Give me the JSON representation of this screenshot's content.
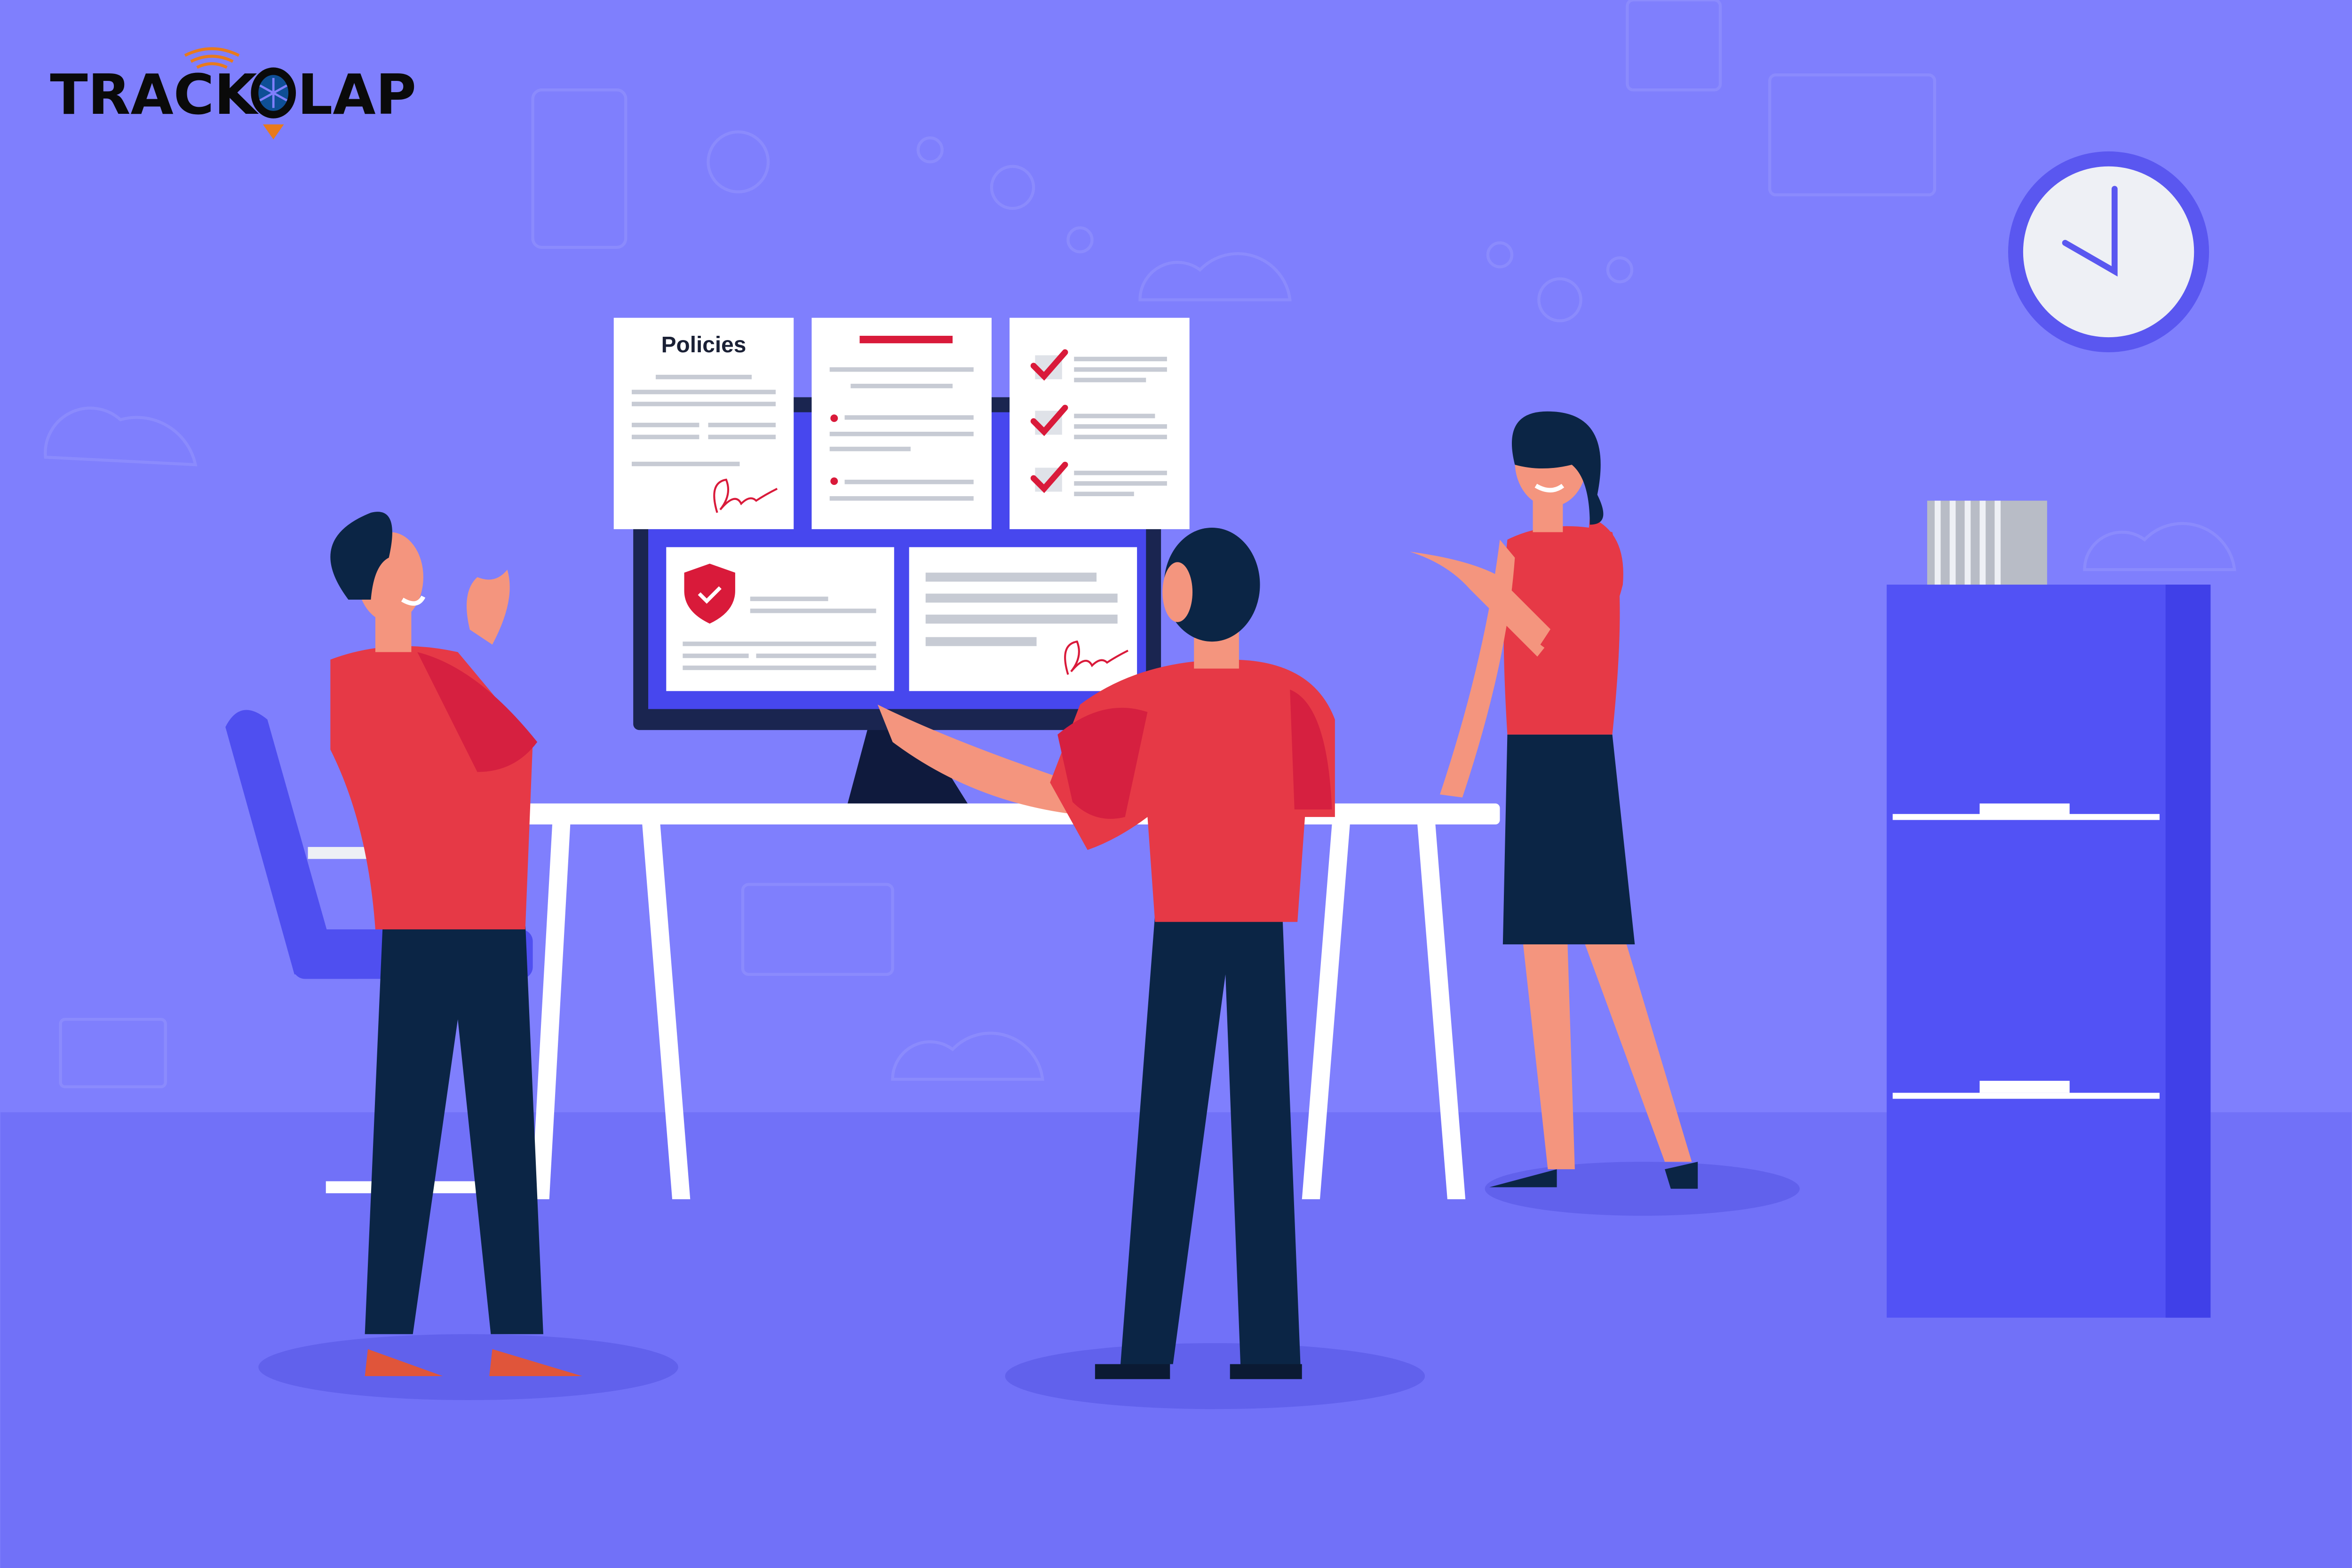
{
  "logo": {
    "text_left": "TRACK",
    "text_right": "LAP",
    "full": "TRACKOLAP",
    "colors": {
      "text": "#0a0a0a",
      "accent": "#e87a1c",
      "wheel": "#0e4f96"
    }
  },
  "documents": {
    "policies_title": "Policies"
  },
  "colors": {
    "background": "#7f7ffd",
    "floor": "#7070f8",
    "cabinet": "#5050f5",
    "shirt": "#e63946",
    "pants": "#0b2545",
    "check": "#d91a3a"
  },
  "icons": [
    "clock-icon",
    "shield-check-icon",
    "checkmark-icon",
    "signature-icon",
    "location-pin-icon",
    "wifi-signal-icon"
  ]
}
